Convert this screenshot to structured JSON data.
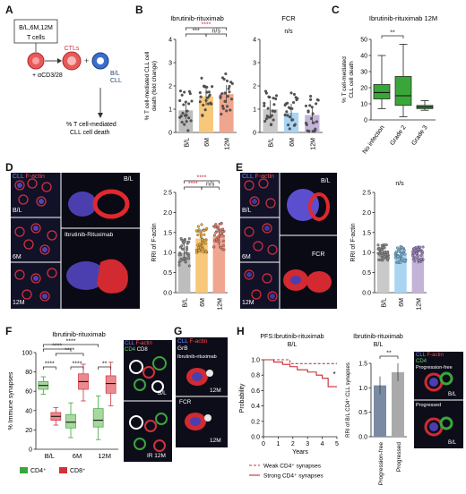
{
  "panels": {
    "A": "A",
    "B": "B",
    "C": "C",
    "D": "D",
    "E": "E",
    "F": "F",
    "G": "G",
    "H": "H"
  },
  "panel_a": {
    "timepoints": "B/L,6M,12M",
    "tcells": "T cells",
    "ctls": "CTLs",
    "stim": "+ αCD3/28",
    "bl": "B/L",
    "cll": "CLL",
    "result1": "% T cell-mediated",
    "result2": "CLL cell death"
  },
  "micro_d": {
    "legend_cll": "CLL",
    "legend_factin": "F-actin",
    "bl": "B/L",
    "m6": "6M",
    "m12": "12M",
    "bl3d": "B/L",
    "ibr": "Ibrutinib-Rituximab"
  },
  "micro_e": {
    "legend_cll": "CLL",
    "legend_factin": "F-actin",
    "bl": "B/L",
    "m6": "6M",
    "m12": "12M",
    "bl3d": "B/L",
    "fcr": "FCR"
  },
  "micro_f": {
    "cll": "CLL",
    "factin": "F-actin",
    "cd4": "CD4",
    "cd8": "CD8",
    "bl": "B/L",
    "ir12": "IR 12M"
  },
  "micro_g": {
    "cll": "CLL",
    "factin": "F-actin",
    "grb": "GrB",
    "ibr": "Ibrutinib-rituximab",
    "fcr": "FCR",
    "m12a": "12M",
    "m12b": "12M"
  },
  "micro_h": {
    "cll": "CLL",
    "factin": "F-actin",
    "cd4": "CD4",
    "pf": "Progression-free",
    "pfbl": "B/L",
    "prog": "Progressed",
    "progbl": "B/L"
  },
  "colors": {
    "bl": "#bdbdbd",
    "m6": "#f7c77a",
    "m12": "#f0a58e",
    "fcr_bl": "#c9c9c9",
    "fcr6": "#a9d4f2",
    "fcr12": "#c4b3d9",
    "green": "#3aa63a",
    "red": "#d2303c",
    "pink": "#e88a8f",
    "dark": "#c42a33",
    "barPF": "#7a8aa3",
    "barP": "#aaaaaa",
    "sig": "#d2303c"
  },
  "chart_data": [
    {
      "id": "B1",
      "type": "bar",
      "title": "Ibrutinib-rituximab",
      "ylabel": "% T cell-mediated CLL cell death (fold change)",
      "categories": [
        "B/L",
        "6M",
        "12M"
      ],
      "values": [
        0.95,
        1.55,
        1.65
      ],
      "ylim": [
        0,
        4
      ],
      "yticks": [
        "0",
        "1",
        "2",
        "3",
        "4"
      ],
      "significance": [
        {
          "label": "****"
        },
        {
          "label": "***"
        },
        {
          "label": "n/s"
        }
      ]
    },
    {
      "id": "B2",
      "type": "bar",
      "title": "FCR",
      "annotation": "n/s",
      "categories": [
        "B/L",
        "6M",
        "12M"
      ],
      "values": [
        1.0,
        0.85,
        0.75
      ],
      "ylim": [
        0,
        4
      ],
      "yticks": [
        "0",
        "1",
        "2",
        "3",
        "4"
      ]
    },
    {
      "id": "C",
      "type": "box",
      "title": "Ibrutinib-rituximab 12M",
      "ylabel": "% T cell-mediated CLL cell death",
      "categories": [
        "No infection",
        "Grade 2",
        "Grade 3"
      ],
      "boxes": [
        {
          "min": 7,
          "q1": 13,
          "median": 17,
          "q3": 22,
          "max": 40
        },
        {
          "min": 2,
          "q1": 9,
          "median": 15,
          "q3": 27,
          "max": 47
        },
        {
          "min": 6,
          "q1": 7,
          "median": 8,
          "q3": 9,
          "max": 12
        }
      ],
      "ylim": [
        0,
        50
      ],
      "yticks": [
        "0",
        "10",
        "20",
        "30",
        "40",
        "50"
      ],
      "significance": [
        {
          "label": "**"
        }
      ]
    },
    {
      "id": "D",
      "type": "bar",
      "ylabel": "RRI of F-actin",
      "categories": [
        "B/L",
        "6M",
        "12M"
      ],
      "values": [
        1.0,
        1.35,
        1.4
      ],
      "ylim": [
        0,
        2.5
      ],
      "yticks": [
        "0.0",
        "0.5",
        "1.0",
        "1.5",
        "2.0",
        "2.5"
      ],
      "significance": [
        {
          "label": "****"
        },
        {
          "label": "****"
        },
        {
          "label": "n/s"
        }
      ]
    },
    {
      "id": "E",
      "type": "bar",
      "ylabel": "RRI of F-actin",
      "annotation": "n/s",
      "categories": [
        "B/L",
        "6M",
        "12M"
      ],
      "values": [
        1.0,
        0.95,
        0.95
      ],
      "ylim": [
        0,
        2.5
      ],
      "yticks": [
        "0.0",
        "0.5",
        "1.0",
        "1.5",
        "2.0",
        "2.5"
      ]
    },
    {
      "id": "F",
      "type": "box",
      "title": "Ibrutinib-rituximab",
      "ylabel": "% Immune synapses",
      "categories": [
        "B/L",
        "6M",
        "12M"
      ],
      "series": [
        {
          "name": "CD4+",
          "boxes": [
            {
              "min": 57,
              "q1": 62,
              "median": 66,
              "q3": 70,
              "max": 75
            },
            {
              "min": 12,
              "q1": 22,
              "median": 28,
              "q3": 36,
              "max": 48
            },
            {
              "min": 10,
              "q1": 23,
              "median": 30,
              "q3": 42,
              "max": 55
            }
          ]
        },
        {
          "name": "CD8+",
          "boxes": [
            {
              "min": 25,
              "q1": 30,
              "median": 34,
              "q3": 38,
              "max": 43
            },
            {
              "min": 50,
              "q1": 62,
              "median": 70,
              "q3": 78,
              "max": 88
            },
            {
              "min": 45,
              "q1": 58,
              "median": 68,
              "q3": 76,
              "max": 90
            }
          ]
        }
      ],
      "ylim": [
        0,
        100
      ],
      "yticks": [
        "0",
        "20",
        "40",
        "60",
        "80",
        "100"
      ],
      "significance": [
        {
          "label": "****"
        },
        {
          "label": "****"
        },
        {
          "label": "****"
        },
        {
          "label": "****"
        },
        {
          "label": "****"
        },
        {
          "label": "**"
        }
      ],
      "legend": [
        "CD4⁺",
        "CD8⁺"
      ]
    },
    {
      "id": "H1",
      "type": "line",
      "title": "PFS:Ibrutinib-rituximab",
      "subtitle": "B/L",
      "xlabel": "Years",
      "ylabel": "Probability",
      "xticks": [
        "0",
        "1",
        "2",
        "3",
        "4",
        "5"
      ],
      "yticks": [
        "0.0",
        "0.2",
        "0.4",
        "0.6",
        "0.8",
        "1.0"
      ],
      "xlim": [
        0,
        5
      ],
      "ylim": [
        0,
        1
      ],
      "series": [
        {
          "name": "Weak CD4⁺ synapses",
          "x": [
            0,
            1.8,
            1.8,
            5
          ],
          "y": [
            1,
            1,
            0.95,
            0.95
          ]
        },
        {
          "name": "Strong CD4⁺ synapses",
          "x": [
            0,
            0.7,
            0.7,
            1.3,
            1.3,
            1.8,
            1.8,
            2.3,
            2.3,
            3.0,
            3.0,
            3.6,
            3.6,
            4.0,
            4.0,
            4.4,
            4.4,
            5
          ],
          "y": [
            1,
            1,
            0.97,
            0.97,
            0.94,
            0.94,
            0.91,
            0.91,
            0.87,
            0.87,
            0.84,
            0.84,
            0.8,
            0.8,
            0.76,
            0.76,
            0.65,
            0.65
          ]
        }
      ],
      "annotation": "*",
      "legend": [
        "Weak CD4⁺ synapses",
        "Strong CD4⁺ synapses"
      ]
    },
    {
      "id": "H2",
      "type": "bar",
      "title": "Ibrutinib-rituximab",
      "subtitle": "B/L",
      "ylabel": "RRI of B/L CD4⁺:CLL synapses",
      "categories": [
        "Progression-free",
        "Progressed"
      ],
      "values": [
        1.05,
        1.32
      ],
      "ylim": [
        0,
        1.5
      ],
      "yticks": [
        "0.0",
        "0.5",
        "1.0",
        "1.5"
      ],
      "significance": [
        {
          "label": "**"
        }
      ]
    }
  ]
}
